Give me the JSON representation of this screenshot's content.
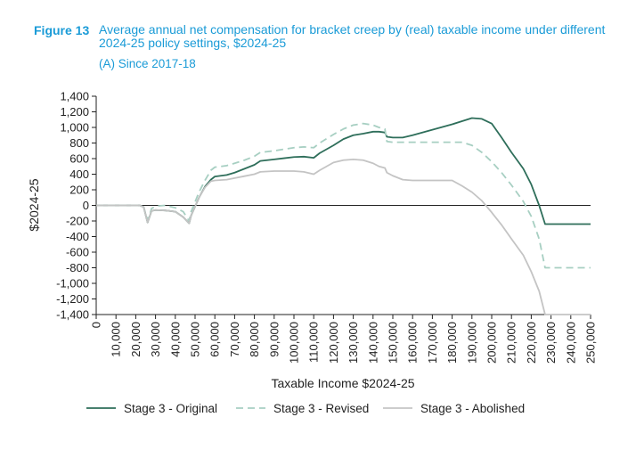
{
  "figure": {
    "label": "Figure 13",
    "title": "Average annual net compensation for bracket creep by (real) taxable income under different 2024-25 policy settings, $2024-25",
    "subtitle": "(A) Since 2017-18"
  },
  "colors": {
    "original": "#2e6e5a",
    "revised": "#a7cfc2",
    "abolished": "#c4c4c4",
    "title": "#1a9bd7",
    "axis": "#222222"
  },
  "chart_data": {
    "type": "line",
    "xlabel": "Taxable Income $2024-25",
    "ylabel": "$2024-25",
    "xlim": [
      0,
      250000
    ],
    "ylim": [
      -1400,
      1400
    ],
    "x_ticks": [
      0,
      10000,
      20000,
      30000,
      40000,
      50000,
      60000,
      70000,
      80000,
      90000,
      100000,
      110000,
      120000,
      130000,
      140000,
      150000,
      160000,
      170000,
      180000,
      190000,
      200000,
      210000,
      220000,
      230000,
      240000,
      250000
    ],
    "x_tick_labels": [
      "0",
      "10,000",
      "20,000",
      "30,000",
      "40,000",
      "50,000",
      "60,000",
      "70,000",
      "80,000",
      "90,000",
      "100,000",
      "110,000",
      "120,000",
      "130,000",
      "140,000",
      "150,000",
      "160,000",
      "170,000",
      "180,000",
      "190,000",
      "200,000",
      "210,000",
      "220,000",
      "230,000",
      "240,000",
      "250,000"
    ],
    "y_ticks": [
      1400,
      1200,
      1000,
      800,
      600,
      400,
      200,
      0,
      -200,
      -400,
      -600,
      -800,
      -1000,
      -1200,
      -1400
    ],
    "y_tick_labels": [
      "1,400",
      "1,200",
      "1,000",
      "800",
      "600",
      "400",
      "200",
      "0",
      "-200",
      "-400",
      "-600",
      "-800",
      "-1,000",
      "-1,200",
      "-1,400"
    ],
    "legend_position": "bottom",
    "grid": false,
    "series": [
      {
        "name": "Stage 3 - Original",
        "color_key": "original",
        "dash": false,
        "points": [
          [
            0,
            0
          ],
          [
            22000,
            0
          ],
          [
            24000,
            -20
          ],
          [
            26000,
            -220
          ],
          [
            28000,
            -70
          ],
          [
            30000,
            -60
          ],
          [
            35000,
            -65
          ],
          [
            40000,
            -80
          ],
          [
            44000,
            -150
          ],
          [
            47000,
            -230
          ],
          [
            48000,
            -130
          ],
          [
            52000,
            100
          ],
          [
            55000,
            240
          ],
          [
            58000,
            330
          ],
          [
            60000,
            370
          ],
          [
            66000,
            390
          ],
          [
            70000,
            420
          ],
          [
            75000,
            470
          ],
          [
            80000,
            520
          ],
          [
            83000,
            570
          ],
          [
            90000,
            590
          ],
          [
            95000,
            605
          ],
          [
            100000,
            620
          ],
          [
            105000,
            625
          ],
          [
            110000,
            610
          ],
          [
            113000,
            670
          ],
          [
            120000,
            770
          ],
          [
            125000,
            850
          ],
          [
            130000,
            900
          ],
          [
            135000,
            920
          ],
          [
            140000,
            945
          ],
          [
            143000,
            945
          ],
          [
            146000,
            935
          ],
          [
            147000,
            880
          ],
          [
            150000,
            870
          ],
          [
            155000,
            870
          ],
          [
            160000,
            900
          ],
          [
            170000,
            970
          ],
          [
            180000,
            1040
          ],
          [
            185000,
            1080
          ],
          [
            190000,
            1120
          ],
          [
            195000,
            1110
          ],
          [
            200000,
            1050
          ],
          [
            205000,
            870
          ],
          [
            210000,
            680
          ],
          [
            216000,
            470
          ],
          [
            220000,
            270
          ],
          [
            224000,
            0
          ],
          [
            227000,
            -240
          ],
          [
            250000,
            -240
          ]
        ]
      },
      {
        "name": "Stage 3 - Revised",
        "color_key": "revised",
        "dash": true,
        "points": [
          [
            0,
            0
          ],
          [
            22000,
            0
          ],
          [
            24000,
            -20
          ],
          [
            26000,
            -190
          ],
          [
            28000,
            -40
          ],
          [
            30000,
            -10
          ],
          [
            35000,
            0
          ],
          [
            40000,
            -30
          ],
          [
            44000,
            -80
          ],
          [
            47000,
            -200
          ],
          [
            48000,
            -80
          ],
          [
            52000,
            170
          ],
          [
            55000,
            320
          ],
          [
            58000,
            450
          ],
          [
            60000,
            490
          ],
          [
            66000,
            510
          ],
          [
            70000,
            540
          ],
          [
            75000,
            580
          ],
          [
            80000,
            630
          ],
          [
            83000,
            680
          ],
          [
            90000,
            700
          ],
          [
            95000,
            720
          ],
          [
            100000,
            740
          ],
          [
            105000,
            750
          ],
          [
            110000,
            740
          ],
          [
            113000,
            800
          ],
          [
            120000,
            910
          ],
          [
            125000,
            980
          ],
          [
            130000,
            1030
          ],
          [
            135000,
            1050
          ],
          [
            140000,
            1030
          ],
          [
            143000,
            1000
          ],
          [
            146000,
            980
          ],
          [
            147000,
            820
          ],
          [
            150000,
            810
          ],
          [
            160000,
            810
          ],
          [
            170000,
            810
          ],
          [
            180000,
            810
          ],
          [
            185000,
            810
          ],
          [
            190000,
            770
          ],
          [
            195000,
            680
          ],
          [
            200000,
            560
          ],
          [
            205000,
            420
          ],
          [
            210000,
            260
          ],
          [
            216000,
            50
          ],
          [
            220000,
            -140
          ],
          [
            224000,
            -430
          ],
          [
            227000,
            -800
          ],
          [
            250000,
            -800
          ]
        ]
      },
      {
        "name": "Stage 3 - Abolished",
        "color_key": "abolished",
        "dash": false,
        "points": [
          [
            0,
            0
          ],
          [
            22000,
            0
          ],
          [
            24000,
            -20
          ],
          [
            26000,
            -220
          ],
          [
            28000,
            -70
          ],
          [
            30000,
            -60
          ],
          [
            35000,
            -65
          ],
          [
            40000,
            -80
          ],
          [
            44000,
            -150
          ],
          [
            47000,
            -230
          ],
          [
            48000,
            -130
          ],
          [
            52000,
            100
          ],
          [
            55000,
            230
          ],
          [
            58000,
            310
          ],
          [
            60000,
            320
          ],
          [
            66000,
            330
          ],
          [
            70000,
            350
          ],
          [
            75000,
            375
          ],
          [
            80000,
            400
          ],
          [
            83000,
            430
          ],
          [
            90000,
            440
          ],
          [
            95000,
            440
          ],
          [
            100000,
            440
          ],
          [
            105000,
            430
          ],
          [
            110000,
            400
          ],
          [
            113000,
            450
          ],
          [
            120000,
            550
          ],
          [
            125000,
            580
          ],
          [
            130000,
            590
          ],
          [
            135000,
            580
          ],
          [
            140000,
            540
          ],
          [
            143000,
            500
          ],
          [
            146000,
            480
          ],
          [
            147000,
            420
          ],
          [
            150000,
            380
          ],
          [
            155000,
            330
          ],
          [
            160000,
            320
          ],
          [
            170000,
            320
          ],
          [
            180000,
            320
          ],
          [
            185000,
            250
          ],
          [
            190000,
            170
          ],
          [
            195000,
            60
          ],
          [
            200000,
            -90
          ],
          [
            205000,
            -250
          ],
          [
            210000,
            -430
          ],
          [
            216000,
            -640
          ],
          [
            220000,
            -850
          ],
          [
            224000,
            -1100
          ],
          [
            227000,
            -1400
          ],
          [
            250000,
            -1400
          ]
        ]
      }
    ]
  }
}
